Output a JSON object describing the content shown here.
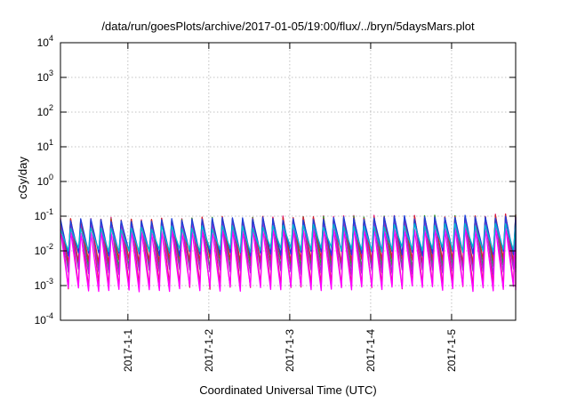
{
  "chart_data": {
    "type": "line",
    "title": "/data/run/goesPlots/archive/2017-01-05/19:00/flux/../bryn/5daysMars.plot",
    "xlabel": "Coordinated Universal Time (UTC)",
    "ylabel": "cGy/day",
    "x_range": [
      "2016-12-31T04:00",
      "2017-01-05T19:00"
    ],
    "x_ticks": [
      "2017-1-1",
      "2017-1-2",
      "2017-1-3",
      "2017-1-4",
      "2017-1-5"
    ],
    "y_scale": "log",
    "ylim": [
      0.0001,
      10000
    ],
    "y_ticks": [
      {
        "base": "10",
        "exp": "-4"
      },
      {
        "base": "10",
        "exp": "-3"
      },
      {
        "base": "10",
        "exp": "-2"
      },
      {
        "base": "10",
        "exp": "-1"
      },
      {
        "base": "10",
        "exp": "0"
      },
      {
        "base": "10",
        "exp": "1"
      },
      {
        "base": "10",
        "exp": "2"
      },
      {
        "base": "10",
        "exp": "3"
      },
      {
        "base": "10",
        "exp": "4"
      }
    ],
    "grid": true,
    "legend": "none",
    "series_pattern": {
      "period_hours": 3,
      "peak_low_days": 0.08,
      "peak_high_days": 0.105
    },
    "series": [
      {
        "color": "#e8137d",
        "peak_factor": 1.0,
        "trough_low": 0.00078,
        "trough_high": 0.0012
      },
      {
        "color": "#2aa02a",
        "peak_factor": 0.95,
        "trough_low": 0.003,
        "trough_high": 0.004
      },
      {
        "color": "#d6202f",
        "peak_factor": 0.98,
        "trough_low": 0.0042,
        "trough_high": 0.006
      },
      {
        "color": "#9a32cd",
        "peak_factor": 0.75,
        "trough_low": 0.002,
        "trough_high": 0.003
      },
      {
        "color": "#ff00ff",
        "peak_factor": 0.45,
        "trough_low": 0.00065,
        "trough_high": 0.001
      },
      {
        "color": "#1f3fd9",
        "peak_factor": 0.93,
        "trough_low": 0.007,
        "trough_high": 0.01
      },
      {
        "color": "#00b8d0",
        "peak_factor": 0.55,
        "trough_low": 0.009,
        "trough_high": 0.013
      }
    ]
  }
}
